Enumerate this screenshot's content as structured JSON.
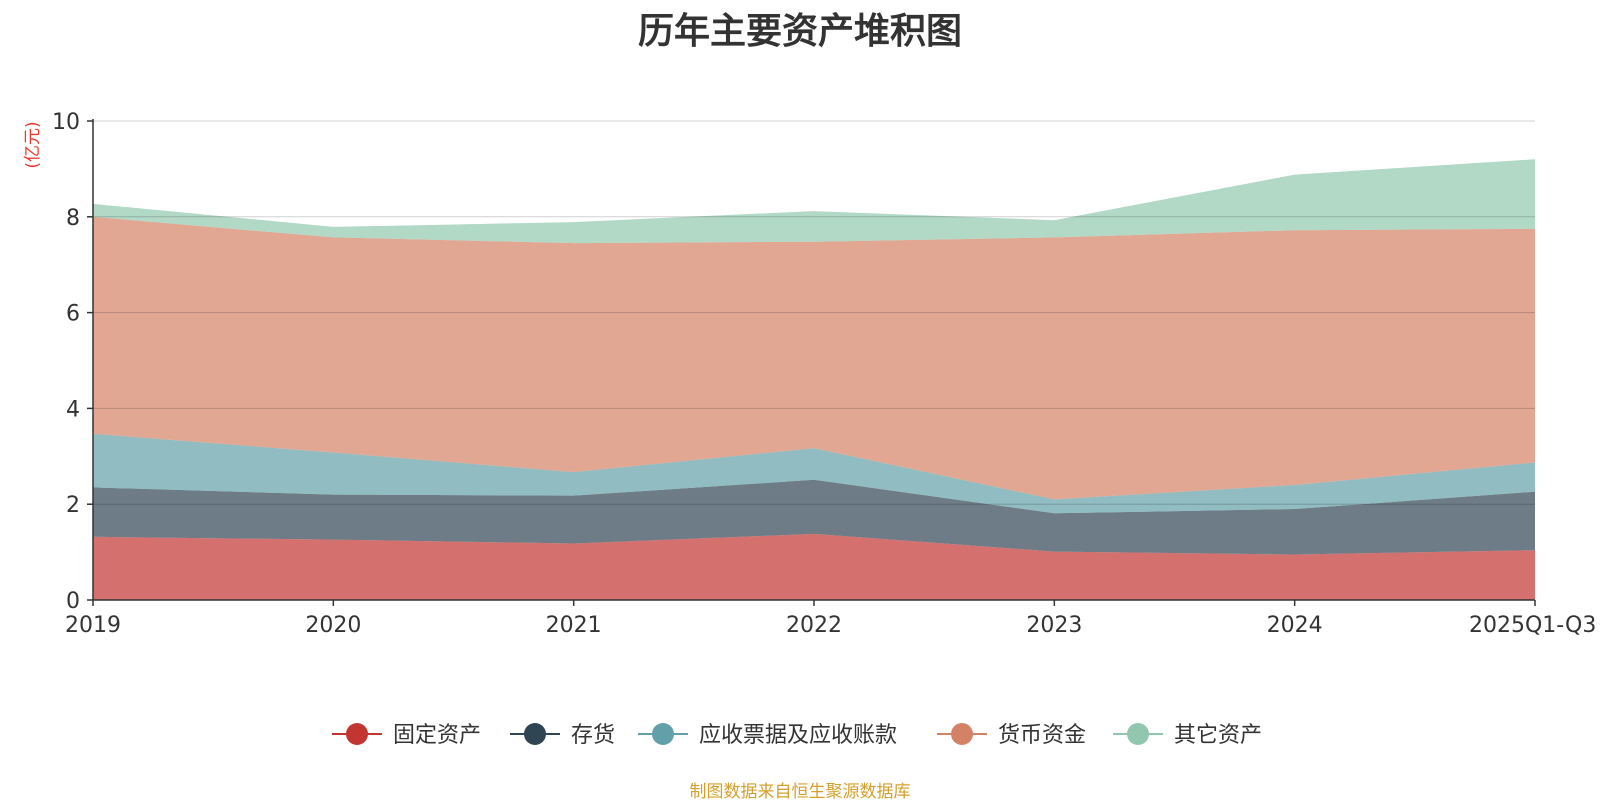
{
  "chart_data": {
    "type": "area",
    "stacked": true,
    "title": "历年主要资产堆积图",
    "ylabel": "(亿元)",
    "xlabel": "",
    "categories": [
      "2019",
      "2020",
      "2021",
      "2022",
      "2023",
      "2024",
      "2025Q1-Q3"
    ],
    "ylim": [
      0,
      10
    ],
    "yticks": [
      0,
      2,
      4,
      6,
      8,
      10
    ],
    "grid": true,
    "legend_position": "bottom",
    "series": [
      {
        "name": "固定资产",
        "color": "#c23531",
        "values": [
          1.32,
          1.26,
          1.18,
          1.38,
          1.01,
          0.95,
          1.04
        ]
      },
      {
        "name": "存货",
        "color": "#2f4554",
        "values": [
          1.03,
          0.94,
          1.0,
          1.13,
          0.8,
          0.95,
          1.22
        ]
      },
      {
        "name": "应收票据及应收账款",
        "color": "#61a0a8",
        "values": [
          1.12,
          0.88,
          0.49,
          0.66,
          0.29,
          0.5,
          0.61
        ]
      },
      {
        "name": "货币资金",
        "color": "#d48265",
        "values": [
          4.53,
          4.49,
          4.78,
          4.31,
          5.47,
          5.32,
          4.88
        ]
      },
      {
        "name": "其它资产",
        "color": "#91c7ae",
        "values": [
          0.27,
          0.22,
          0.44,
          0.64,
          0.36,
          1.16,
          1.45
        ]
      }
    ]
  },
  "source_note": "制图数据来自恒生聚源数据库",
  "colors": {
    "ylabel": "#e8382e",
    "source": "#d4a02c",
    "axis": "#333333",
    "grid": "#cccccc",
    "text": "#333333"
  }
}
